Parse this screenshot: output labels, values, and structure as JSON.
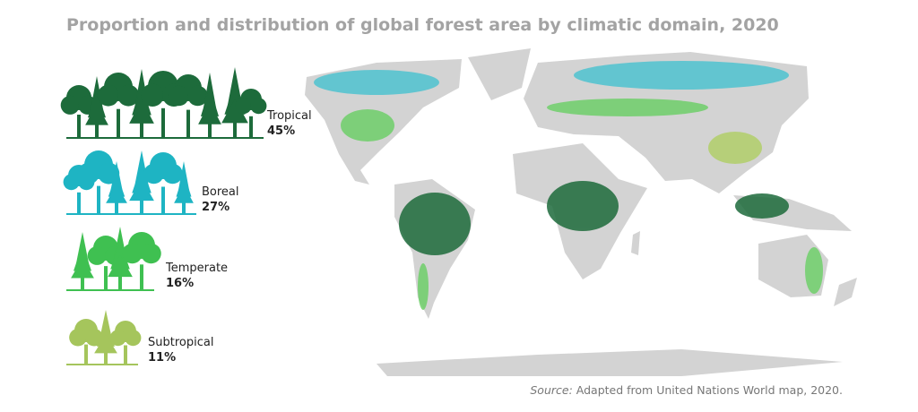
{
  "title": "Proportion and distribution of global forest area by climatic domain, 2020",
  "legend": [
    {
      "label": "Tropical",
      "share": "45%",
      "color": "#1d6b3b"
    },
    {
      "label": "Boreal",
      "share": "27%",
      "color": "#1eb4c3"
    },
    {
      "label": "Temperate",
      "share": "16%",
      "color": "#3fc051"
    },
    {
      "label": "Subtropical",
      "share": "11%",
      "color": "#a5c55c"
    }
  ],
  "source": {
    "prefix": "Source:",
    "text": "Adapted from United Nations World map, 2020."
  }
}
